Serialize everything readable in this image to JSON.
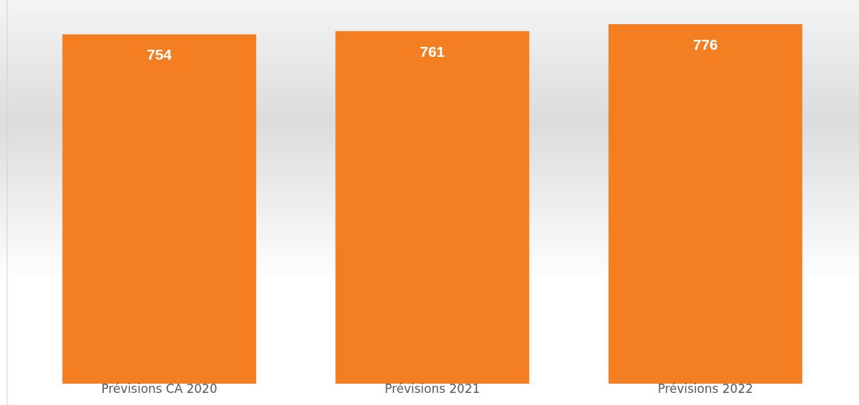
{
  "chart_data": {
    "type": "bar",
    "categories": [
      "Prévisions CA 2020",
      "Prévisions 2021",
      "Prévisions 2022"
    ],
    "values": [
      754,
      761,
      776
    ],
    "color": "#f37f22",
    "data_labels": true
  }
}
